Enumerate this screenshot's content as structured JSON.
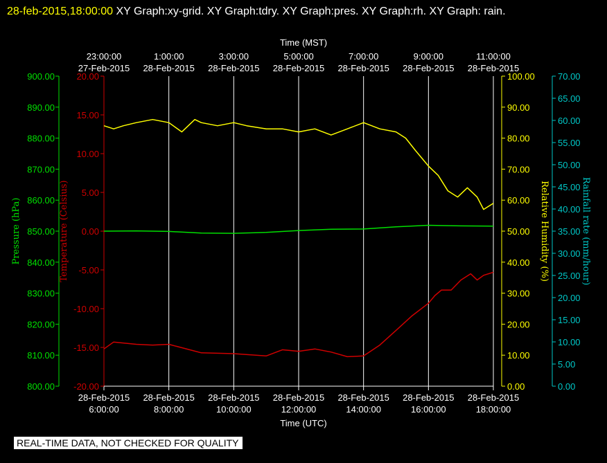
{
  "header": {
    "timestamp": "28-feb-2015,18:00:00",
    "graphs_text": " XY Graph:xy-grid.  XY Graph:tdry.  XY Graph:pres.  XY Graph:rh.  XY Graph: rain."
  },
  "notice": "REAL-TIME DATA, NOT CHECKED FOR QUALITY",
  "colors": {
    "background": "#000000",
    "grid": "#ffffff",
    "pressure": "#00e000",
    "temperature": "#d00000",
    "humidity": "#ffff00",
    "rain": "#00c8c8"
  },
  "chart_data": {
    "type": "line",
    "grid": true,
    "x_bottom": {
      "label": "Time (UTC)",
      "ticks": [
        {
          "date": "28-Feb-2015",
          "time": "6:00:00"
        },
        {
          "date": "28-Feb-2015",
          "time": "8:00:00"
        },
        {
          "date": "28-Feb-2015",
          "time": "10:00:00"
        },
        {
          "date": "28-Feb-2015",
          "time": "12:00:00"
        },
        {
          "date": "28-Feb-2015",
          "time": "14:00:00"
        },
        {
          "date": "28-Feb-2015",
          "time": "16:00:00"
        },
        {
          "date": "28-Feb-2015",
          "time": "18:00:00"
        }
      ]
    },
    "x_top": {
      "label": "Time (MST)",
      "ticks": [
        {
          "time": "23:00:00",
          "date": "27-Feb-2015"
        },
        {
          "time": "1:00:00",
          "date": "28-Feb-2015"
        },
        {
          "time": "3:00:00",
          "date": "28-Feb-2015"
        },
        {
          "time": "5:00:00",
          "date": "28-Feb-2015"
        },
        {
          "time": "7:00:00",
          "date": "28-Feb-2015"
        },
        {
          "time": "9:00:00",
          "date": "28-Feb-2015"
        },
        {
          "time": "11:00:00",
          "date": "28-Feb-2015"
        }
      ]
    },
    "axes": {
      "pressure": {
        "label": "Pressure (hPa)",
        "ylim": [
          800,
          900
        ],
        "ticks": [
          "800.00",
          "810.00",
          "820.00",
          "830.00",
          "840.00",
          "850.00",
          "860.00",
          "870.00",
          "880.00",
          "890.00",
          "900.00"
        ]
      },
      "temperature": {
        "label": "Temperature (Celsius)",
        "ylim": [
          -20,
          20
        ],
        "ticks": [
          "-20.00",
          "-15.00",
          "-10.00",
          "-5.00",
          "0.00",
          "5.00",
          "10.00",
          "15.00",
          "20.00"
        ]
      },
      "humidity": {
        "label": "Relative Humidity (%)",
        "ylim": [
          0,
          100
        ],
        "ticks": [
          "0.00",
          "10.00",
          "20.00",
          "30.00",
          "40.00",
          "50.00",
          "60.00",
          "70.00",
          "80.00",
          "90.00",
          "100.00"
        ]
      },
      "rain": {
        "label": "Rainfall rate (mm/hour)",
        "ylim": [
          0,
          70
        ],
        "ticks": [
          "0.00",
          "5.00",
          "10.00",
          "15.00",
          "20.00",
          "25.00",
          "30.00",
          "35.00",
          "40.00",
          "45.00",
          "50.00",
          "55.00",
          "60.00",
          "65.00",
          "70.00"
        ]
      }
    },
    "x_hours_utc": [
      6,
      18
    ],
    "series": [
      {
        "axis": "pressure",
        "points": [
          [
            6,
            850.0
          ],
          [
            7,
            850.1
          ],
          [
            8,
            849.9
          ],
          [
            9,
            849.4
          ],
          [
            10,
            849.3
          ],
          [
            11,
            849.6
          ],
          [
            12,
            850.2
          ],
          [
            13,
            850.6
          ],
          [
            14,
            850.7
          ],
          [
            15,
            851.4
          ],
          [
            16,
            851.9
          ],
          [
            17,
            851.7
          ],
          [
            18,
            851.6
          ]
        ]
      },
      {
        "axis": "temperature",
        "points": [
          [
            6,
            -15.2
          ],
          [
            6.3,
            -14.3
          ],
          [
            7,
            -14.6
          ],
          [
            7.5,
            -14.7
          ],
          [
            8,
            -14.6
          ],
          [
            9,
            -15.7
          ],
          [
            10,
            -15.8
          ],
          [
            11,
            -16.1
          ],
          [
            11.5,
            -15.3
          ],
          [
            12,
            -15.5
          ],
          [
            12.5,
            -15.2
          ],
          [
            13,
            -15.6
          ],
          [
            13.5,
            -16.2
          ],
          [
            14,
            -16.1
          ],
          [
            14.5,
            -14.7
          ],
          [
            15,
            -12.8
          ],
          [
            15.5,
            -10.9
          ],
          [
            16,
            -9.3
          ],
          [
            16.2,
            -8.3
          ],
          [
            16.4,
            -7.6
          ],
          [
            16.7,
            -7.6
          ],
          [
            17,
            -6.3
          ],
          [
            17.3,
            -5.5
          ],
          [
            17.5,
            -6.3
          ],
          [
            17.7,
            -5.7
          ],
          [
            18,
            -5.3
          ]
        ]
      },
      {
        "axis": "humidity",
        "points": [
          [
            6,
            84
          ],
          [
            6.3,
            83
          ],
          [
            6.6,
            84
          ],
          [
            7,
            85
          ],
          [
            7.5,
            86
          ],
          [
            8,
            85
          ],
          [
            8.4,
            82
          ],
          [
            8.8,
            86
          ],
          [
            9,
            85
          ],
          [
            9.5,
            84
          ],
          [
            10,
            85
          ],
          [
            10.4,
            84
          ],
          [
            11,
            83
          ],
          [
            11.5,
            83
          ],
          [
            12,
            82
          ],
          [
            12.5,
            83
          ],
          [
            13,
            81
          ],
          [
            13.5,
            83
          ],
          [
            14,
            85
          ],
          [
            14.5,
            83
          ],
          [
            15,
            82
          ],
          [
            15.3,
            80
          ],
          [
            15.6,
            76
          ],
          [
            16,
            71
          ],
          [
            16.3,
            68
          ],
          [
            16.6,
            63
          ],
          [
            16.9,
            61
          ],
          [
            17.2,
            64
          ],
          [
            17.5,
            61
          ],
          [
            17.7,
            57
          ],
          [
            18,
            59
          ]
        ]
      },
      {
        "axis": "rain",
        "points": []
      }
    ]
  }
}
